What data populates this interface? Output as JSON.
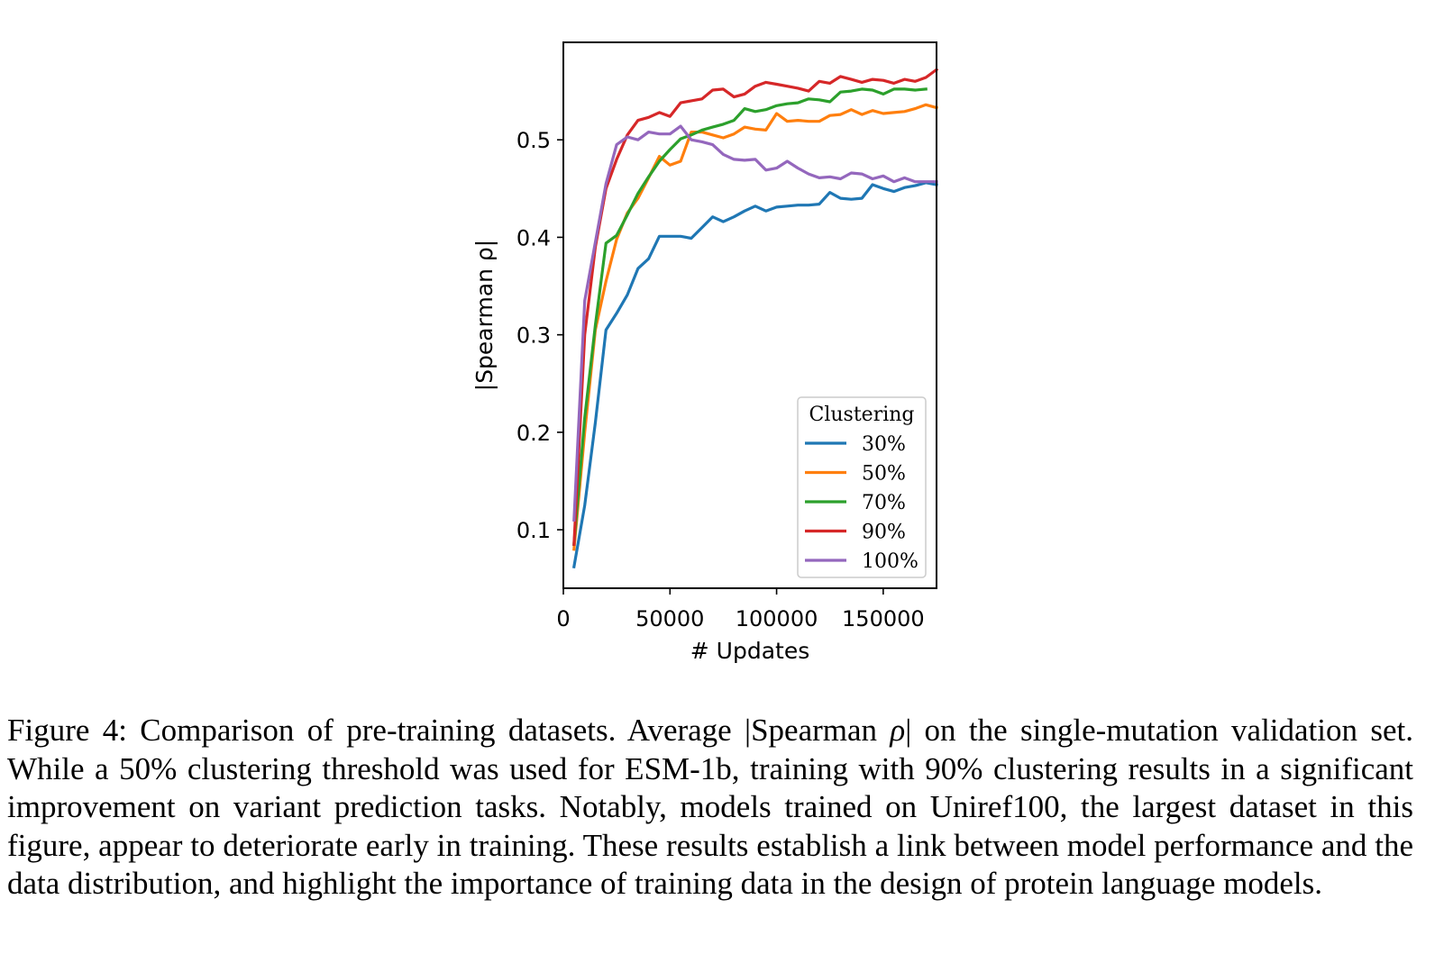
{
  "chart_data": {
    "type": "line",
    "title": "",
    "xlabel": "# Updates",
    "ylabel": "|Spearman ρ|",
    "xlim": [
      0,
      175000
    ],
    "ylim": [
      0.04,
      0.6
    ],
    "xticks": [
      0,
      50000,
      100000,
      150000
    ],
    "xtick_labels": [
      "0",
      "50000",
      "100000",
      "150000"
    ],
    "yticks": [
      0.1,
      0.2,
      0.3,
      0.4,
      0.5
    ],
    "ytick_labels": [
      "0.1",
      "0.2",
      "0.3",
      "0.4",
      "0.5"
    ],
    "grid": false,
    "legend": {
      "title": "Clustering",
      "position": "lower-right"
    },
    "series": [
      {
        "name": "30%",
        "color": "#1f77b4",
        "x": [
          5000,
          10000,
          15000,
          20000,
          25000,
          30000,
          35000,
          40000,
          45000,
          50000,
          55000,
          60000,
          65000,
          70000,
          75000,
          80000,
          85000,
          90000,
          95000,
          100000,
          105000,
          110000,
          115000,
          120000,
          125000,
          130000,
          135000,
          140000,
          145000,
          150000,
          155000,
          160000,
          165000,
          170000,
          175000
        ],
        "values": [
          0.062,
          0.125,
          0.21,
          0.305,
          0.322,
          0.341,
          0.368,
          0.378,
          0.401,
          0.401,
          0.401,
          0.399,
          0.41,
          0.421,
          0.416,
          0.421,
          0.427,
          0.432,
          0.427,
          0.431,
          0.432,
          0.433,
          0.433,
          0.434,
          0.446,
          0.44,
          0.439,
          0.44,
          0.454,
          0.45,
          0.447,
          0.451,
          0.453,
          0.456,
          0.454
        ]
      },
      {
        "name": "50%",
        "color": "#ff7f0e",
        "x": [
          5000,
          10000,
          15000,
          20000,
          25000,
          30000,
          35000,
          40000,
          45000,
          50000,
          55000,
          60000,
          65000,
          70000,
          75000,
          80000,
          85000,
          90000,
          95000,
          100000,
          105000,
          110000,
          115000,
          120000,
          125000,
          130000,
          135000,
          140000,
          145000,
          150000,
          155000,
          160000,
          165000,
          170000,
          175000
        ],
        "values": [
          0.08,
          0.2,
          0.305,
          0.355,
          0.398,
          0.425,
          0.44,
          0.461,
          0.483,
          0.474,
          0.478,
          0.508,
          0.508,
          0.505,
          0.502,
          0.506,
          0.513,
          0.511,
          0.51,
          0.527,
          0.519,
          0.52,
          0.519,
          0.519,
          0.525,
          0.526,
          0.531,
          0.526,
          0.53,
          0.527,
          0.528,
          0.529,
          0.532,
          0.536,
          0.533
        ]
      },
      {
        "name": "70%",
        "color": "#2ca02c",
        "x": [
          5000,
          10000,
          15000,
          20000,
          25000,
          30000,
          35000,
          40000,
          45000,
          50000,
          55000,
          60000,
          65000,
          70000,
          75000,
          80000,
          85000,
          90000,
          95000,
          100000,
          105000,
          110000,
          115000,
          120000,
          125000,
          130000,
          135000,
          140000,
          145000,
          150000,
          155000,
          160000,
          165000,
          170000
        ],
        "values": [
          0.085,
          0.215,
          0.31,
          0.394,
          0.402,
          0.423,
          0.445,
          0.462,
          0.478,
          0.49,
          0.501,
          0.505,
          0.51,
          0.513,
          0.516,
          0.52,
          0.532,
          0.529,
          0.531,
          0.535,
          0.537,
          0.538,
          0.542,
          0.541,
          0.539,
          0.549,
          0.55,
          0.552,
          0.551,
          0.547,
          0.552,
          0.552,
          0.551,
          0.552
        ]
      },
      {
        "name": "90%",
        "color": "#d62728",
        "x": [
          5000,
          10000,
          15000,
          20000,
          25000,
          30000,
          35000,
          40000,
          45000,
          50000,
          55000,
          60000,
          65000,
          70000,
          75000,
          80000,
          85000,
          90000,
          95000,
          100000,
          105000,
          110000,
          115000,
          120000,
          125000,
          130000,
          135000,
          140000,
          145000,
          150000,
          155000,
          160000,
          165000,
          170000,
          175000
        ],
        "values": [
          0.085,
          0.3,
          0.39,
          0.45,
          0.48,
          0.505,
          0.52,
          0.523,
          0.528,
          0.524,
          0.538,
          0.54,
          0.542,
          0.551,
          0.552,
          0.544,
          0.547,
          0.555,
          0.559,
          0.557,
          0.555,
          0.553,
          0.55,
          0.56,
          0.558,
          0.565,
          0.562,
          0.559,
          0.562,
          0.561,
          0.558,
          0.562,
          0.56,
          0.564,
          0.572
        ]
      },
      {
        "name": "100%",
        "color": "#9467bd",
        "x": [
          5000,
          10000,
          15000,
          20000,
          25000,
          30000,
          35000,
          40000,
          45000,
          50000,
          55000,
          60000,
          65000,
          70000,
          75000,
          80000,
          85000,
          90000,
          95000,
          100000,
          105000,
          110000,
          115000,
          120000,
          125000,
          130000,
          135000,
          140000,
          145000,
          150000,
          155000,
          160000,
          165000,
          170000,
          175000
        ],
        "values": [
          0.11,
          0.335,
          0.395,
          0.455,
          0.495,
          0.503,
          0.5,
          0.508,
          0.506,
          0.506,
          0.514,
          0.5,
          0.498,
          0.495,
          0.485,
          0.48,
          0.479,
          0.48,
          0.469,
          0.471,
          0.478,
          0.471,
          0.465,
          0.461,
          0.462,
          0.46,
          0.466,
          0.465,
          0.46,
          0.463,
          0.457,
          0.461,
          0.457,
          0.457,
          0.457
        ]
      }
    ]
  },
  "caption": {
    "label": "Figure 4:",
    "text_1": " Comparison of pre-training datasets. Average |Spearman ",
    "rho": "ρ",
    "text_2": "| on the single-mutation validation set. While a 50% clustering threshold was used for ESM-1b, training with 90% clustering results in a significant improvement on variant prediction tasks. Notably, models trained on Uniref100, the largest dataset in this figure, appear to deteriorate early in training. These results establish a link between model performance and the data distribution, and highlight the importance of training data in the design of protein language models."
  }
}
